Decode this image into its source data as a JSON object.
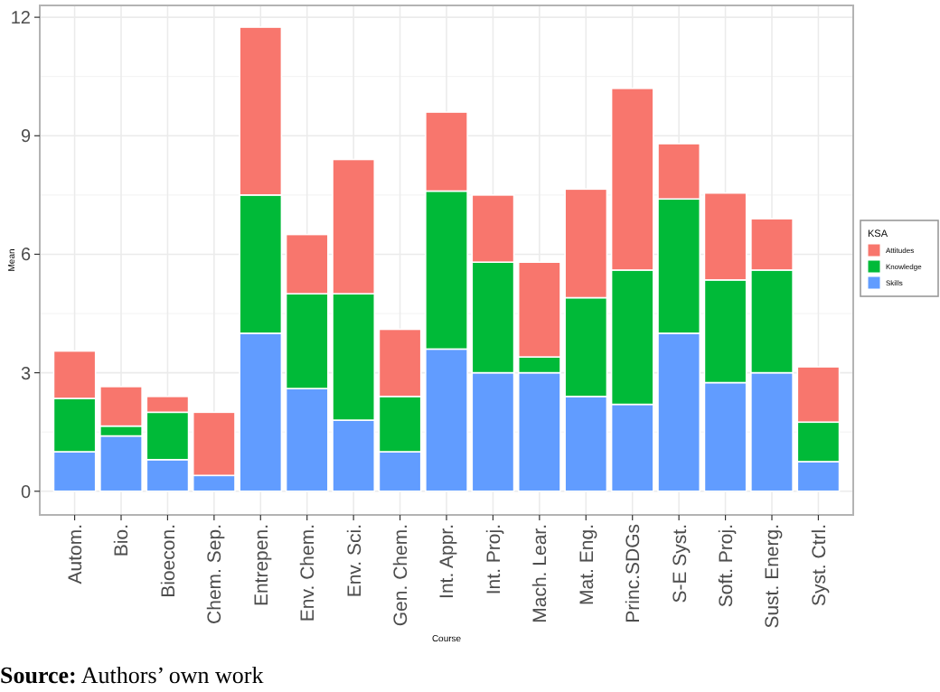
{
  "chart_data": {
    "type": "bar",
    "stacked": true,
    "xlabel": "Course",
    "ylabel": "Mean",
    "legend_title": "KSA",
    "legend": "right",
    "grid": true,
    "categories": [
      "Autom.",
      "Bio.",
      "Bioecon.",
      "Chem. Sep.",
      "Entrepen.",
      "Env. Chem.",
      "Env. Sci.",
      "Gen. Chem.",
      "Int. Appr.",
      "Int. Proj.",
      "Mach. Lear.",
      "Mat. Eng.",
      "Princ.SDGs",
      "S-E Syst.",
      "Soft. Proj.",
      "Sust. Energ.",
      "Syst. Ctrl."
    ],
    "series": [
      {
        "name": "Skills",
        "color": "#619cff",
        "values": [
          1.0,
          1.4,
          0.8,
          0.4,
          4.0,
          2.6,
          1.8,
          1.0,
          3.6,
          3.0,
          3.0,
          2.4,
          2.2,
          4.0,
          2.75,
          3.0,
          0.75
        ]
      },
      {
        "name": "Knowledge",
        "color": "#00ba38",
        "values": [
          1.35,
          0.25,
          1.2,
          0,
          3.5,
          2.4,
          3.2,
          1.4,
          4.0,
          2.8,
          0.4,
          2.5,
          3.4,
          3.4,
          2.6,
          2.6,
          1.0
        ]
      },
      {
        "name": "Attitudes",
        "color": "#f8766d",
        "values": [
          1.2,
          1.0,
          0.4,
          1.6,
          4.25,
          1.5,
          3.4,
          1.7,
          2.0,
          1.7,
          2.4,
          2.75,
          4.6,
          1.4,
          2.2,
          1.3,
          1.4
        ]
      }
    ],
    "ylim": [
      -0.6,
      12.3
    ],
    "yticks": [
      0,
      3,
      6,
      9,
      12
    ],
    "annotations": [
      "Source: Authors’ own work"
    ]
  }
}
